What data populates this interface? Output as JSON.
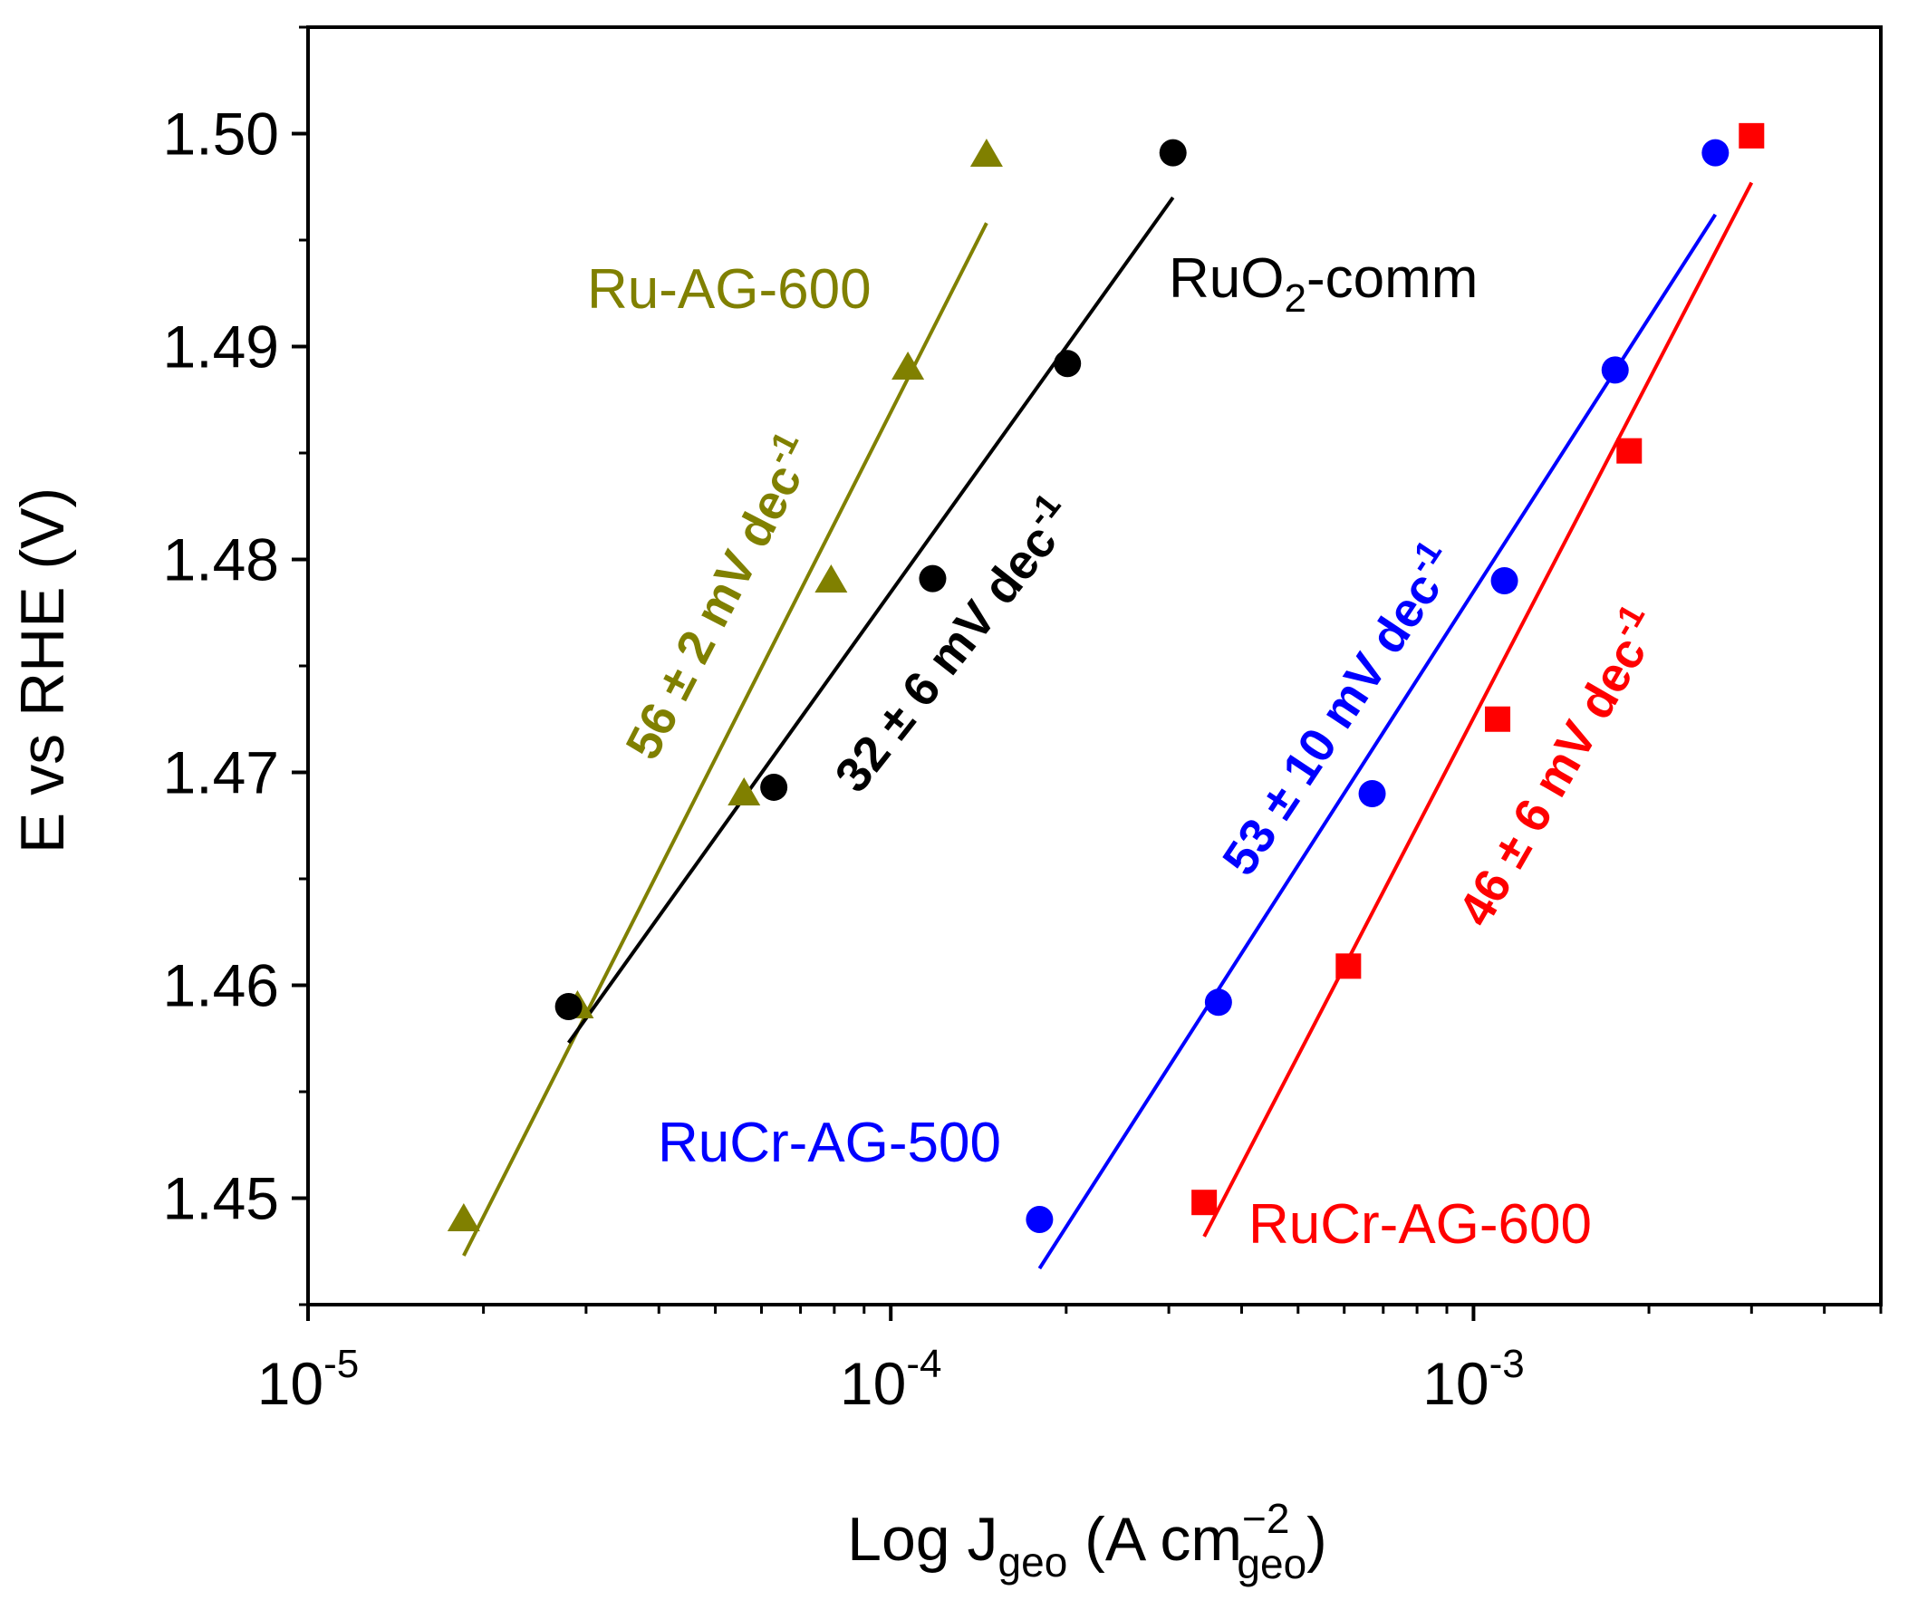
{
  "chart_data": {
    "type": "scatter",
    "xscale": "log",
    "xlim": [
      1e-05,
      0.005
    ],
    "ylim": [
      1.445,
      1.505
    ],
    "grid": false,
    "xlabel": {
      "main": "Log J",
      "sub1": "geo",
      "mid": " (A cm",
      "sup": "−2",
      "sub2": "geo",
      "end": ")"
    },
    "ylabel": "E vs RHE (V)",
    "x_ticks": [
      {
        "value": 1e-05,
        "base": "10",
        "exp": "-5"
      },
      {
        "value": 0.0001,
        "base": "10",
        "exp": "-4"
      },
      {
        "value": 0.001,
        "base": "10",
        "exp": "-3"
      }
    ],
    "y_ticks": [
      {
        "value": 1.45,
        "label": "1.45"
      },
      {
        "value": 1.46,
        "label": "1.46"
      },
      {
        "value": 1.47,
        "label": "1.47"
      },
      {
        "value": 1.48,
        "label": "1.48"
      },
      {
        "value": 1.49,
        "label": "1.49"
      },
      {
        "value": 1.5,
        "label": "1.50"
      }
    ],
    "series": [
      {
        "name": "Ru-AG-600",
        "label_parts": [
          "Ru-AG-600"
        ],
        "color": "#808000",
        "marker": "triangle",
        "slope_text": {
          "num": "56 ± 2 mV dec",
          "sup": "-1"
        },
        "points": [
          [
            1.85e-05,
            1.449
          ],
          [
            2.9e-05,
            1.459
          ],
          [
            5.6e-05,
            1.469
          ],
          [
            7.9e-05,
            1.479
          ],
          [
            0.000107,
            1.489
          ],
          [
            0.000146,
            1.499
          ]
        ],
        "fit": [
          [
            1.85e-05,
            1.4473
          ],
          [
            0.000146,
            1.4958
          ]
        ]
      },
      {
        "name": "RuO2-comm",
        "label_parts": [
          "RuO",
          "2",
          "-comm"
        ],
        "color": "#000000",
        "marker": "circle",
        "slope_text": {
          "num": "32 ± 6 mV dec",
          "sup": "-1"
        },
        "points": [
          [
            2.8e-05,
            1.459
          ],
          [
            6.3e-05,
            1.4693
          ],
          [
            0.000118,
            1.4791
          ],
          [
            0.000201,
            1.4892
          ],
          [
            0.000305,
            1.4991
          ]
        ],
        "fit": [
          [
            2.8e-05,
            1.4573
          ],
          [
            0.000305,
            1.497
          ]
        ]
      },
      {
        "name": "RuCr-AG-500",
        "label_parts": [
          "RuCr-AG-500"
        ],
        "color": "#0000ff",
        "marker": "circle",
        "slope_text": {
          "num": "53 ± 10 mV dec",
          "sup": "-1"
        },
        "points": [
          [
            0.00018,
            1.449
          ],
          [
            0.000365,
            1.4592
          ],
          [
            0.00067,
            1.469
          ],
          [
            0.00113,
            1.479
          ],
          [
            0.00175,
            1.4889
          ],
          [
            0.0026,
            1.4991
          ]
        ],
        "fit": [
          [
            0.00018,
            1.4467
          ],
          [
            0.0026,
            1.4962
          ]
        ]
      },
      {
        "name": "RuCr-AG-600",
        "label_parts": [
          "RuCr-AG-600"
        ],
        "color": "#ff0000",
        "marker": "square",
        "slope_text": {
          "num": "46 ± 6 mV dec",
          "sup": "-1"
        },
        "points": [
          [
            0.000345,
            1.4498
          ],
          [
            0.00061,
            1.4609
          ],
          [
            0.0011,
            1.4725
          ],
          [
            0.00185,
            1.4851
          ],
          [
            0.003,
            1.4999
          ]
        ],
        "fit": [
          [
            0.000345,
            1.4482
          ],
          [
            0.003,
            1.4977
          ]
        ]
      }
    ]
  }
}
